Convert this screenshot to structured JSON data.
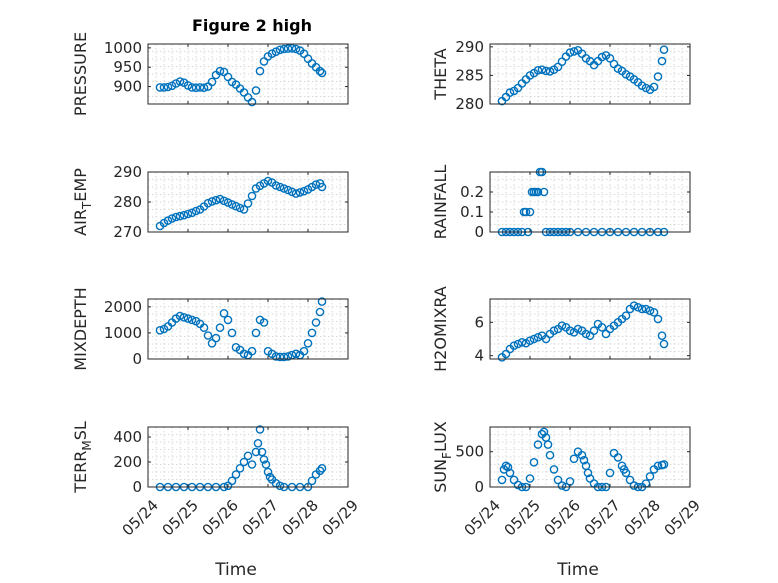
{
  "figure_title": "Figure 2 high",
  "colors": {
    "marker": "#0072BD",
    "axis": "#262626",
    "grid": "#cfcfcf"
  },
  "chart_data": [
    {
      "type": "scatter",
      "ylabel": "PRESSURE",
      "title": "Figure 2 high",
      "xlabel": "",
      "xlim": [
        "05/24",
        "05/29"
      ],
      "ylim": [
        855,
        1010
      ],
      "yticks": [
        900,
        950,
        1000
      ],
      "grid": true,
      "x": [
        24.3,
        24.4,
        24.5,
        24.6,
        24.7,
        24.8,
        24.9,
        25.0,
        25.1,
        25.2,
        25.3,
        25.4,
        25.5,
        25.6,
        25.7,
        25.8,
        25.9,
        26.0,
        26.1,
        26.2,
        26.3,
        26.4,
        26.5,
        26.6,
        26.7,
        26.8,
        26.9,
        27.0,
        27.1,
        27.2,
        27.3,
        27.4,
        27.5,
        27.6,
        27.7,
        27.8,
        27.9,
        28.0,
        28.1,
        28.2,
        28.3,
        28.35
      ],
      "y": [
        898,
        898,
        899,
        902,
        908,
        913,
        910,
        903,
        898,
        897,
        898,
        897,
        900,
        912,
        930,
        940,
        938,
        925,
        912,
        905,
        895,
        885,
        872,
        860,
        890,
        940,
        965,
        978,
        985,
        990,
        995,
        997,
        998,
        999,
        997,
        993,
        985,
        972,
        960,
        950,
        940,
        935
      ]
    },
    {
      "type": "scatter",
      "ylabel": "THETA",
      "xlabel": "",
      "xlim": [
        "05/24",
        "05/29"
      ],
      "ylim": [
        280,
        290.5
      ],
      "yticks": [
        280,
        285,
        290
      ],
      "grid": true,
      "x": [
        24.3,
        24.4,
        24.5,
        24.6,
        24.7,
        24.8,
        24.9,
        25.0,
        25.1,
        25.2,
        25.3,
        25.4,
        25.5,
        25.6,
        25.7,
        25.8,
        25.9,
        26.0,
        26.1,
        26.2,
        26.3,
        26.4,
        26.5,
        26.6,
        26.7,
        26.8,
        26.9,
        27.0,
        27.1,
        27.2,
        27.3,
        27.4,
        27.5,
        27.6,
        27.7,
        27.8,
        27.9,
        28.0,
        28.1,
        28.2,
        28.3,
        28.35
      ],
      "y": [
        280.5,
        281.2,
        282.0,
        282.3,
        282.8,
        283.6,
        284.3,
        285.0,
        285.4,
        285.9,
        286.0,
        285.8,
        285.7,
        286.0,
        286.5,
        287.4,
        288.3,
        289.0,
        289.2,
        289.4,
        288.8,
        288.0,
        287.5,
        286.8,
        287.5,
        288.2,
        288.5,
        288.0,
        287.0,
        286.2,
        285.8,
        285.2,
        284.8,
        284.3,
        283.8,
        283.2,
        282.8,
        282.5,
        283.0,
        284.8,
        287.5,
        289.5
      ]
    },
    {
      "type": "scatter",
      "ylabel": "AIR",
      "ylabel_sub": "T",
      "ylabel_end": "EMP",
      "xlabel": "",
      "xlim": [
        "05/24",
        "05/29"
      ],
      "ylim": [
        270,
        290
      ],
      "yticks": [
        270,
        280,
        290
      ],
      "grid": true,
      "x": [
        24.3,
        24.4,
        24.5,
        24.6,
        24.7,
        24.8,
        24.9,
        25.0,
        25.1,
        25.2,
        25.3,
        25.4,
        25.5,
        25.6,
        25.7,
        25.8,
        25.9,
        26.0,
        26.1,
        26.2,
        26.3,
        26.4,
        26.5,
        26.6,
        26.7,
        26.8,
        26.9,
        27.0,
        27.1,
        27.2,
        27.3,
        27.4,
        27.5,
        27.6,
        27.7,
        27.8,
        27.9,
        28.0,
        28.1,
        28.2,
        28.3,
        28.35
      ],
      "y": [
        272.0,
        273.0,
        273.8,
        274.5,
        275.0,
        275.3,
        275.6,
        276.0,
        276.4,
        277.0,
        277.5,
        278.5,
        279.6,
        280.2,
        280.6,
        281.0,
        280.4,
        279.8,
        279.2,
        278.6,
        278.0,
        277.5,
        279.5,
        282.0,
        284.5,
        285.4,
        286.2,
        287.0,
        286.5,
        285.5,
        285.0,
        284.5,
        284.0,
        283.4,
        282.8,
        283.2,
        283.6,
        284.2,
        285.0,
        285.8,
        286.2,
        285.0
      ]
    },
    {
      "type": "scatter",
      "ylabel": "RAINFALL",
      "xlabel": "",
      "xlim": [
        "05/24",
        "05/29"
      ],
      "ylim": [
        0,
        0.3
      ],
      "yticks": [
        0,
        0.1,
        0.2
      ],
      "grid": true,
      "x": [
        24.3,
        24.4,
        24.5,
        24.6,
        24.7,
        24.8,
        24.85,
        24.9,
        24.95,
        25.0,
        25.05,
        25.1,
        25.15,
        25.2,
        25.25,
        25.3,
        25.35,
        25.4,
        25.5,
        25.6,
        25.7,
        25.8,
        25.9,
        26.0,
        26.2,
        26.4,
        26.6,
        26.8,
        27.0,
        27.2,
        27.4,
        27.6,
        27.8,
        28.0,
        28.2,
        28.35
      ],
      "y": [
        0,
        0,
        0,
        0,
        0,
        0,
        0.1,
        0.1,
        0,
        0.1,
        0.2,
        0.2,
        0.2,
        0.2,
        0.3,
        0.3,
        0.2,
        0,
        0,
        0,
        0,
        0,
        0,
        0,
        0,
        0,
        0,
        0,
        0,
        0,
        0,
        0,
        0,
        0,
        0,
        0
      ]
    },
    {
      "type": "scatter",
      "ylabel": "MIXDEPTH",
      "xlabel": "",
      "xlim": [
        "05/24",
        "05/29"
      ],
      "ylim": [
        0,
        2300
      ],
      "yticks": [
        0,
        1000,
        2000
      ],
      "grid": true,
      "x": [
        24.3,
        24.4,
        24.5,
        24.6,
        24.7,
        24.8,
        24.9,
        25.0,
        25.1,
        25.2,
        25.3,
        25.4,
        25.5,
        25.6,
        25.7,
        25.8,
        25.9,
        26.0,
        26.1,
        26.2,
        26.3,
        26.4,
        26.5,
        26.6,
        26.7,
        26.8,
        26.9,
        27.0,
        27.1,
        27.2,
        27.3,
        27.4,
        27.5,
        27.6,
        27.7,
        27.8,
        27.9,
        28.0,
        28.1,
        28.2,
        28.3,
        28.35
      ],
      "y": [
        1100,
        1150,
        1250,
        1400,
        1550,
        1650,
        1600,
        1550,
        1500,
        1450,
        1350,
        1200,
        900,
        600,
        800,
        1200,
        1750,
        1500,
        1000,
        450,
        350,
        200,
        150,
        300,
        1000,
        1500,
        1400,
        300,
        200,
        100,
        80,
        80,
        100,
        150,
        200,
        150,
        300,
        600,
        1000,
        1400,
        1800,
        2200
      ]
    },
    {
      "type": "scatter",
      "ylabel": "H2OMIXRA",
      "xlabel": "",
      "xlim": [
        "05/24",
        "05/29"
      ],
      "ylim": [
        3.8,
        7.4
      ],
      "yticks": [
        4,
        6
      ],
      "grid": true,
      "x": [
        24.3,
        24.4,
        24.5,
        24.6,
        24.7,
        24.8,
        24.9,
        25.0,
        25.1,
        25.2,
        25.3,
        25.4,
        25.5,
        25.6,
        25.7,
        25.8,
        25.9,
        26.0,
        26.1,
        26.2,
        26.3,
        26.4,
        26.5,
        26.6,
        26.7,
        26.8,
        26.9,
        27.0,
        27.1,
        27.2,
        27.3,
        27.4,
        27.5,
        27.6,
        27.7,
        27.8,
        27.9,
        28.0,
        28.1,
        28.2,
        28.3,
        28.35
      ],
      "y": [
        3.9,
        4.1,
        4.4,
        4.6,
        4.7,
        4.8,
        4.75,
        4.9,
        5.0,
        5.1,
        5.2,
        5.0,
        5.3,
        5.5,
        5.6,
        5.8,
        5.7,
        5.5,
        5.4,
        5.6,
        5.5,
        5.3,
        5.2,
        5.5,
        5.9,
        5.7,
        5.3,
        5.6,
        5.8,
        6.0,
        6.2,
        6.4,
        6.8,
        7.0,
        6.9,
        6.8,
        6.8,
        6.7,
        6.6,
        6.2,
        5.2,
        4.7
      ]
    },
    {
      "type": "scatter",
      "ylabel": "TERR",
      "ylabel_sub": "M",
      "ylabel_end": "SL",
      "xlabel": "Time",
      "xlim": [
        "05/24",
        "05/29"
      ],
      "ylim": [
        0,
        480
      ],
      "yticks": [
        0,
        200,
        400
      ],
      "grid": true,
      "xticklabels": [
        "05/24",
        "05/25",
        "05/26",
        "05/27",
        "05/28",
        "05/29"
      ],
      "x": [
        24.3,
        24.5,
        24.7,
        24.9,
        25.1,
        25.3,
        25.5,
        25.7,
        25.9,
        26.0,
        26.1,
        26.2,
        26.3,
        26.4,
        26.5,
        26.6,
        26.7,
        26.75,
        26.8,
        26.85,
        26.9,
        26.95,
        27.0,
        27.05,
        27.1,
        27.2,
        27.3,
        27.4,
        27.6,
        27.8,
        28.0,
        28.1,
        28.2,
        28.3,
        28.35
      ],
      "y": [
        0,
        0,
        0,
        0,
        0,
        0,
        0,
        0,
        0,
        10,
        50,
        100,
        150,
        200,
        250,
        180,
        280,
        350,
        460,
        280,
        220,
        180,
        120,
        80,
        60,
        30,
        10,
        0,
        0,
        0,
        0,
        50,
        100,
        130,
        150
      ]
    },
    {
      "type": "scatter",
      "ylabel": "SUN",
      "ylabel_sub": "F",
      "ylabel_end": "LUX",
      "xlabel": "Time",
      "xlim": [
        "05/24",
        "05/29"
      ],
      "ylim": [
        0,
        850
      ],
      "yticks": [
        0,
        500
      ],
      "grid": true,
      "xticklabels": [
        "05/24",
        "05/25",
        "05/26",
        "05/27",
        "05/28",
        "05/29"
      ],
      "x": [
        24.3,
        24.35,
        24.4,
        24.45,
        24.5,
        24.6,
        24.7,
        24.8,
        24.9,
        25.0,
        25.1,
        25.2,
        25.3,
        25.35,
        25.4,
        25.45,
        25.5,
        25.6,
        25.7,
        25.8,
        25.9,
        26.0,
        26.1,
        26.2,
        26.3,
        26.35,
        26.4,
        26.45,
        26.5,
        26.6,
        26.7,
        26.8,
        26.9,
        27.0,
        27.1,
        27.2,
        27.3,
        27.35,
        27.4,
        27.5,
        27.6,
        27.7,
        27.8,
        27.9,
        28.0,
        28.1,
        28.2,
        28.3,
        28.35
      ],
      "y": [
        100,
        250,
        300,
        280,
        200,
        100,
        30,
        0,
        0,
        120,
        350,
        600,
        750,
        780,
        700,
        600,
        450,
        250,
        100,
        20,
        0,
        80,
        400,
        500,
        450,
        380,
        300,
        200,
        120,
        50,
        0,
        0,
        0,
        200,
        480,
        420,
        300,
        250,
        200,
        100,
        20,
        0,
        0,
        50,
        150,
        250,
        300,
        310,
        320
      ]
    }
  ]
}
